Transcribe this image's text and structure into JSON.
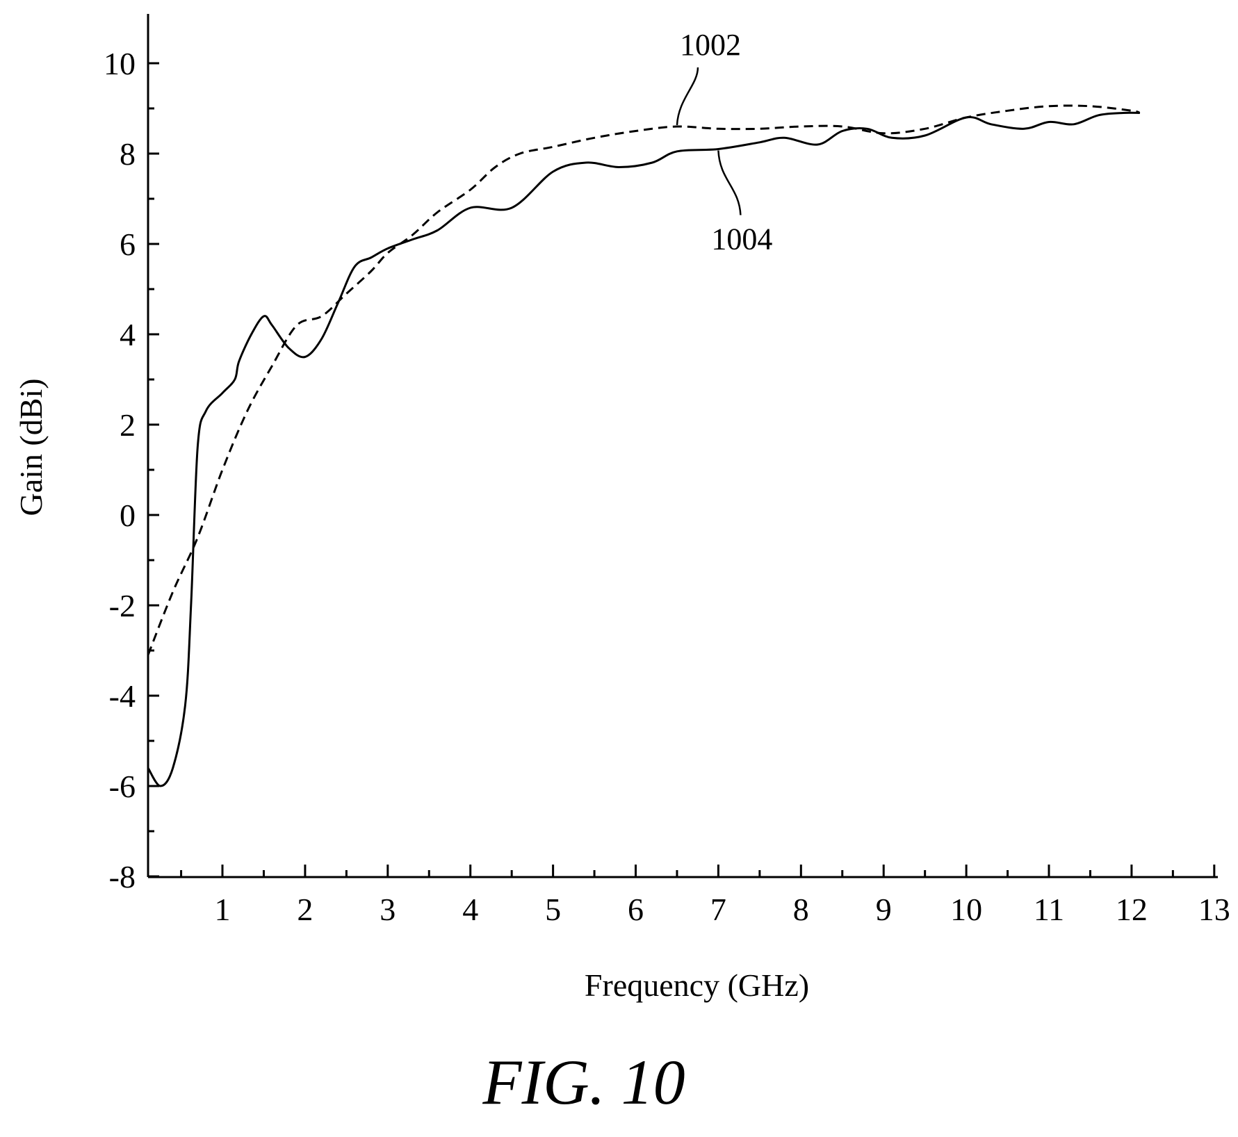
{
  "caption": "FIG. 10",
  "chart_data": {
    "type": "line",
    "title": "",
    "xlabel": "Frequency (GHz)",
    "ylabel": "Gain (dBi)",
    "xlim": [
      0.1,
      13
    ],
    "ylim": [
      -8,
      11
    ],
    "x_ticks": [
      1,
      2,
      3,
      4,
      5,
      6,
      7,
      8,
      9,
      10,
      11,
      12,
      13
    ],
    "y_ticks": [
      -8,
      -6,
      -4,
      -2,
      0,
      2,
      4,
      6,
      8,
      10
    ],
    "grid": false,
    "legend": "none",
    "series": [
      {
        "name": "1002",
        "line_style": "dashed",
        "color": "#000000",
        "x": [
          0.1,
          0.4,
          0.7,
          1.0,
          1.3,
          1.6,
          1.9,
          2.2,
          2.5,
          2.8,
          3.0,
          3.3,
          3.6,
          4.0,
          4.3,
          4.6,
          5.0,
          5.5,
          6.0,
          6.5,
          7.0,
          7.5,
          8.0,
          8.5,
          9.0,
          9.5,
          10.0,
          10.5,
          11.0,
          11.5,
          12.0,
          12.1
        ],
        "values": [
          -3.1,
          -1.7,
          -0.5,
          1.0,
          2.3,
          3.3,
          4.2,
          4.4,
          4.9,
          5.4,
          5.8,
          6.2,
          6.7,
          7.2,
          7.7,
          8.0,
          8.15,
          8.35,
          8.5,
          8.6,
          8.55,
          8.55,
          8.6,
          8.6,
          8.45,
          8.55,
          8.8,
          8.95,
          9.05,
          9.05,
          8.95,
          8.9
        ]
      },
      {
        "name": "1004",
        "line_style": "solid",
        "color": "#000000",
        "x": [
          0.1,
          0.25,
          0.4,
          0.55,
          0.62,
          0.7,
          0.8,
          1.0,
          1.15,
          1.2,
          1.35,
          1.5,
          1.6,
          1.8,
          2.0,
          2.2,
          2.4,
          2.6,
          2.8,
          3.0,
          3.3,
          3.6,
          4.0,
          4.5,
          5.0,
          5.4,
          5.8,
          6.2,
          6.5,
          7.0,
          7.5,
          7.8,
          8.2,
          8.5,
          8.8,
          9.1,
          9.5,
          10.0,
          10.3,
          10.7,
          11.0,
          11.3,
          11.6,
          11.9,
          12.1
        ],
        "values": [
          -5.6,
          -6.0,
          -5.6,
          -4.2,
          -2.0,
          1.5,
          2.3,
          2.7,
          3.0,
          3.4,
          4.0,
          4.4,
          4.2,
          3.7,
          3.5,
          3.9,
          4.7,
          5.5,
          5.7,
          5.9,
          6.1,
          6.3,
          6.8,
          6.8,
          7.6,
          7.8,
          7.7,
          7.8,
          8.05,
          8.1,
          8.25,
          8.35,
          8.2,
          8.5,
          8.55,
          8.35,
          8.4,
          8.8,
          8.65,
          8.55,
          8.7,
          8.65,
          8.85,
          8.9,
          8.9
        ]
      }
    ],
    "annotations": [
      {
        "text": "1002",
        "target_series": "1002",
        "x": 6.5,
        "y": 8.6
      },
      {
        "text": "1004",
        "target_series": "1004",
        "x": 7.0,
        "y": 8.1
      }
    ]
  }
}
